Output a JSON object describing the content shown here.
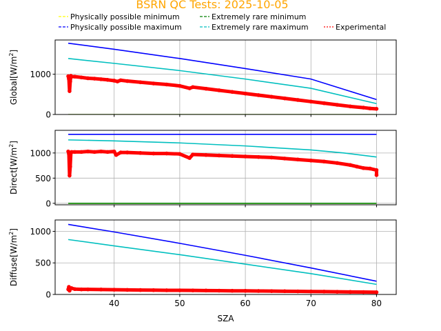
{
  "title": "BSRN QC Tests: 2025-10-05",
  "colors": {
    "title": "#ffa500",
    "phys_min": "#ffff00",
    "phys_max": "#0000ff",
    "rare_min": "#008000",
    "rare_max": "#00bfbf",
    "experimental": "#ff0000",
    "grid": "#b0b0b0"
  },
  "legend": {
    "placement": "top, above plots, 3 columns",
    "items": [
      {
        "key": "phys_min",
        "label": "Physically possible minimum"
      },
      {
        "key": "phys_max",
        "label": "Physically possible maximum"
      },
      {
        "key": "rare_min",
        "label": "Extremely rare minimum"
      },
      {
        "key": "rare_max",
        "label": "Extremely rare maximum"
      },
      {
        "key": "experimental",
        "label": "Experimental"
      }
    ]
  },
  "chart_data": [
    {
      "type": "scatter",
      "ylabel": "Global",
      "yunit": "[W/m",
      "yunit_sup": "2",
      "yunit_end": "]",
      "xlim": [
        31,
        83
      ],
      "ylim": [
        0,
        1850
      ],
      "yticks": [
        0,
        1000
      ],
      "xticks": [
        40,
        50,
        60,
        70,
        80
      ],
      "show_xticklabels": false,
      "grid": true,
      "lines": [
        {
          "key": "phys_min",
          "x": [
            33,
            80
          ],
          "y": [
            -4,
            -4
          ]
        },
        {
          "key": "rare_min",
          "x": [
            33,
            80
          ],
          "y": [
            -4,
            -4
          ]
        },
        {
          "key": "phys_max",
          "x": [
            33,
            40,
            50,
            60,
            70,
            80
          ],
          "y": [
            1770,
            1620,
            1390,
            1140,
            880,
            370
          ]
        },
        {
          "key": "rare_max",
          "x": [
            33,
            40,
            50,
            60,
            70,
            80
          ],
          "y": [
            1390,
            1270,
            1090,
            880,
            650,
            270
          ]
        }
      ],
      "scatter": {
        "key": "experimental",
        "x": [
          33,
          33.1,
          33.2,
          33.3,
          33.4,
          33.5,
          34,
          35,
          36,
          37,
          38,
          39,
          40,
          40.5,
          41,
          42,
          44,
          46,
          48,
          50,
          51.5,
          52,
          54,
          56,
          58,
          60,
          62,
          64,
          66,
          68,
          70,
          72,
          74,
          76,
          78,
          79,
          80
        ],
        "y": [
          950,
          880,
          580,
          820,
          960,
          940,
          940,
          920,
          900,
          890,
          875,
          860,
          840,
          820,
          850,
          830,
          800,
          770,
          745,
          710,
          650,
          680,
          640,
          600,
          560,
          520,
          480,
          440,
          400,
          360,
          320,
          280,
          240,
          200,
          170,
          150,
          140
        ]
      }
    },
    {
      "type": "scatter",
      "ylabel": "Direct",
      "yunit": "[W/m",
      "yunit_sup": "2",
      "yunit_end": "]",
      "xlim": [
        31,
        83
      ],
      "ylim": [
        -30,
        1450
      ],
      "yticks": [
        0,
        500,
        1000
      ],
      "xticks": [
        40,
        50,
        60,
        70,
        80
      ],
      "show_xticklabels": false,
      "grid": true,
      "lines": [
        {
          "key": "phys_min",
          "x": [
            33,
            80
          ],
          "y": [
            0,
            0
          ]
        },
        {
          "key": "rare_min",
          "x": [
            33,
            80
          ],
          "y": [
            0,
            0
          ]
        },
        {
          "key": "phys_max",
          "x": [
            33,
            80
          ],
          "y": [
            1370,
            1370
          ]
        },
        {
          "key": "rare_max",
          "x": [
            33,
            40,
            50,
            60,
            70,
            75,
            80
          ],
          "y": [
            1260,
            1240,
            1200,
            1140,
            1060,
            1000,
            920
          ]
        }
      ],
      "scatter": {
        "key": "experimental",
        "x": [
          33,
          33.1,
          33.2,
          33.3,
          33.4,
          33.5,
          34,
          35,
          36,
          37,
          38,
          39,
          40,
          40.3,
          41,
          42,
          44,
          46,
          48,
          50,
          51.5,
          52,
          54,
          56,
          58,
          60,
          62,
          64,
          66,
          68,
          70,
          72,
          74,
          76,
          77,
          78,
          79,
          80,
          80
        ],
        "y": [
          1030,
          980,
          550,
          730,
          1000,
          1020,
          1020,
          1020,
          1030,
          1020,
          1030,
          1020,
          1030,
          960,
          1010,
          1010,
          1000,
          990,
          990,
          980,
          900,
          970,
          960,
          950,
          940,
          930,
          920,
          910,
          890,
          870,
          850,
          830,
          800,
          760,
          730,
          700,
          690,
          660,
          560
        ]
      }
    },
    {
      "type": "scatter",
      "ylabel": "Diffuse",
      "yunit": "[W/m",
      "yunit_sup": "2",
      "yunit_end": "]",
      "xlabel": "SZA",
      "xlim": [
        31,
        83
      ],
      "ylim": [
        0,
        1180
      ],
      "yticks": [
        0,
        500,
        1000
      ],
      "xticks": [
        40,
        50,
        60,
        70,
        80
      ],
      "show_xticklabels": true,
      "grid": true,
      "lines": [
        {
          "key": "phys_min",
          "x": [
            33,
            80
          ],
          "y": [
            -3,
            -3
          ]
        },
        {
          "key": "rare_min",
          "x": [
            33,
            80
          ],
          "y": [
            -3,
            -3
          ]
        },
        {
          "key": "phys_max",
          "x": [
            33,
            40,
            50,
            60,
            70,
            80
          ],
          "y": [
            1110,
            990,
            810,
            620,
            420,
            210
          ]
        },
        {
          "key": "rare_max",
          "x": [
            33,
            40,
            50,
            60,
            70,
            80
          ],
          "y": [
            870,
            770,
            630,
            480,
            330,
            160
          ]
        }
      ],
      "scatter": {
        "key": "experimental",
        "x": [
          33,
          33.1,
          33.2,
          33.3,
          33.5,
          34,
          35,
          36,
          38,
          40,
          42,
          44,
          46,
          48,
          50,
          52,
          54,
          56,
          58,
          60,
          62,
          64,
          66,
          68,
          70,
          72,
          74,
          76,
          78,
          80
        ],
        "y": [
          80,
          120,
          60,
          90,
          100,
          85,
          80,
          80,
          78,
          75,
          72,
          70,
          68,
          66,
          65,
          64,
          62,
          60,
          58,
          57,
          55,
          53,
          51,
          49,
          47,
          45,
          42,
          40,
          38,
          35
        ]
      }
    }
  ]
}
